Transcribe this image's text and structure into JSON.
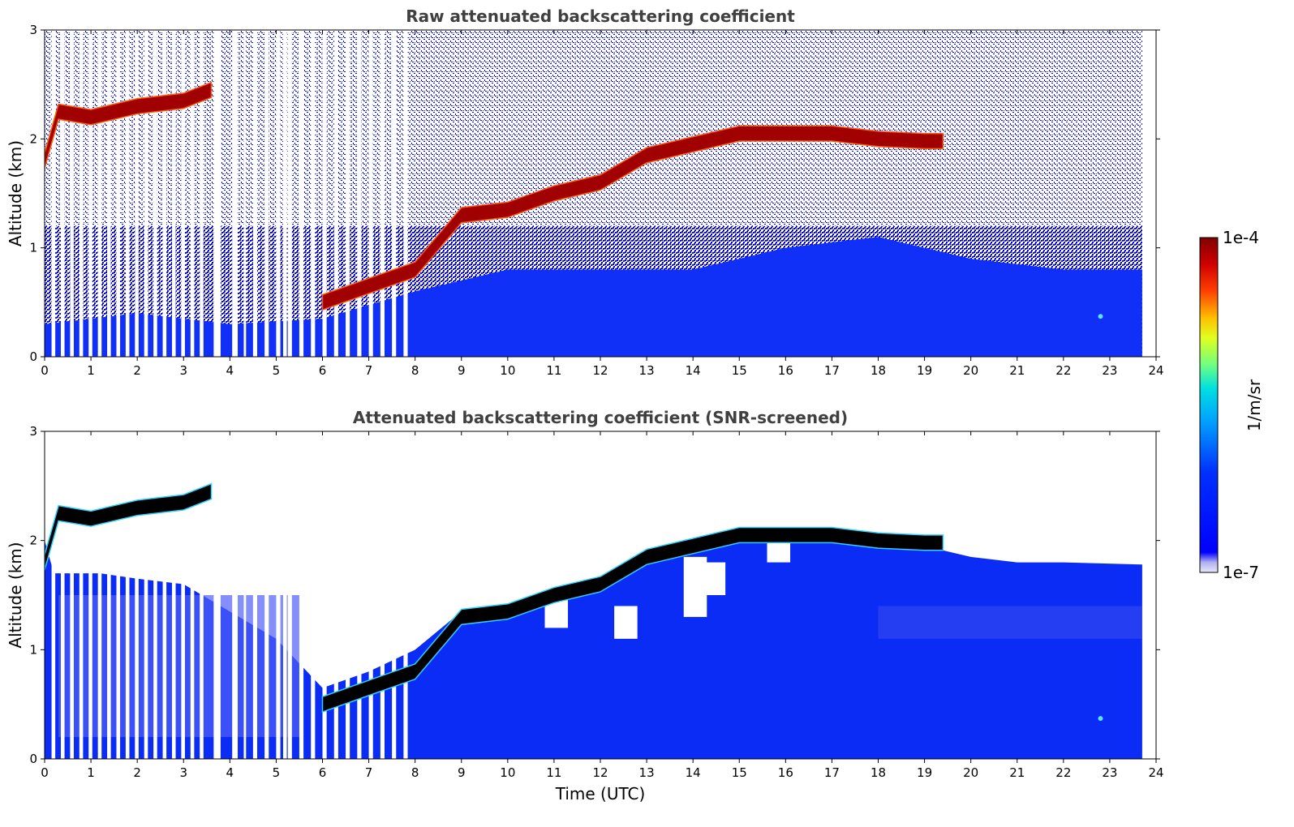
{
  "chart_data": [
    {
      "type": "heatmap",
      "title": "Raw attenuated backscattering coefficient",
      "xlabel": "",
      "ylabel": "Altitude (km)",
      "xlim": [
        0,
        24
      ],
      "ylim": [
        0,
        3
      ],
      "xticks": [
        "0",
        "1",
        "2",
        "3",
        "4",
        "5",
        "6",
        "7",
        "8",
        "9",
        "10",
        "11",
        "12",
        "13",
        "14",
        "15",
        "16",
        "17",
        "18",
        "19",
        "20",
        "21",
        "22",
        "23",
        "24"
      ],
      "yticks": [
        "0",
        "1",
        "2",
        "3"
      ],
      "data_end_time": 23.7,
      "layer_altitude_km": [
        [
          0.0,
          1.8
        ],
        [
          0.3,
          2.25
        ],
        [
          1.0,
          2.2
        ],
        [
          2.0,
          2.3
        ],
        [
          3.0,
          2.35
        ],
        [
          3.6,
          2.45
        ],
        [
          6.0,
          0.5
        ],
        [
          7.0,
          0.65
        ],
        [
          8.0,
          0.8
        ],
        [
          9.0,
          1.3
        ],
        [
          10.0,
          1.35
        ],
        [
          11.0,
          1.5
        ],
        [
          12.0,
          1.6
        ],
        [
          13.0,
          1.85
        ],
        [
          14.0,
          1.95
        ],
        [
          15.0,
          2.05
        ],
        [
          16.0,
          2.05
        ],
        [
          17.0,
          2.05
        ],
        [
          18.0,
          2.0
        ],
        [
          19.0,
          1.98
        ],
        [
          19.4,
          1.98
        ]
      ]
    },
    {
      "type": "heatmap",
      "title": "Attenuated backscattering coefficient (SNR-screened)",
      "xlabel": "Time (UTC)",
      "ylabel": "Altitude (km)",
      "xlim": [
        0,
        24
      ],
      "ylim": [
        0,
        3
      ],
      "xticks": [
        "0",
        "1",
        "2",
        "3",
        "4",
        "5",
        "6",
        "7",
        "8",
        "9",
        "10",
        "11",
        "12",
        "13",
        "14",
        "15",
        "16",
        "17",
        "18",
        "19",
        "20",
        "21",
        "22",
        "23",
        "24"
      ],
      "yticks": [
        "0",
        "1",
        "2",
        "3"
      ],
      "data_end_time": 23.7
    }
  ],
  "colorbar": {
    "label": "1/m/sr",
    "max_label": "1e-4",
    "min_label": "1e-7",
    "colormap": [
      "#e8e8f8",
      "#c8c8f0",
      "#9a9af5",
      "#0000ff",
      "#0050ff",
      "#00a0ff",
      "#00e8e0",
      "#60ff90",
      "#d0ff20",
      "#ffe000",
      "#ff8000",
      "#ff2000",
      "#c00000",
      "#800000"
    ]
  },
  "colors": {
    "blue": "#0000ff",
    "bg_blue": "#1a3cf0",
    "dark_red": "#a00000",
    "black": "#000000",
    "title": "#404040"
  }
}
